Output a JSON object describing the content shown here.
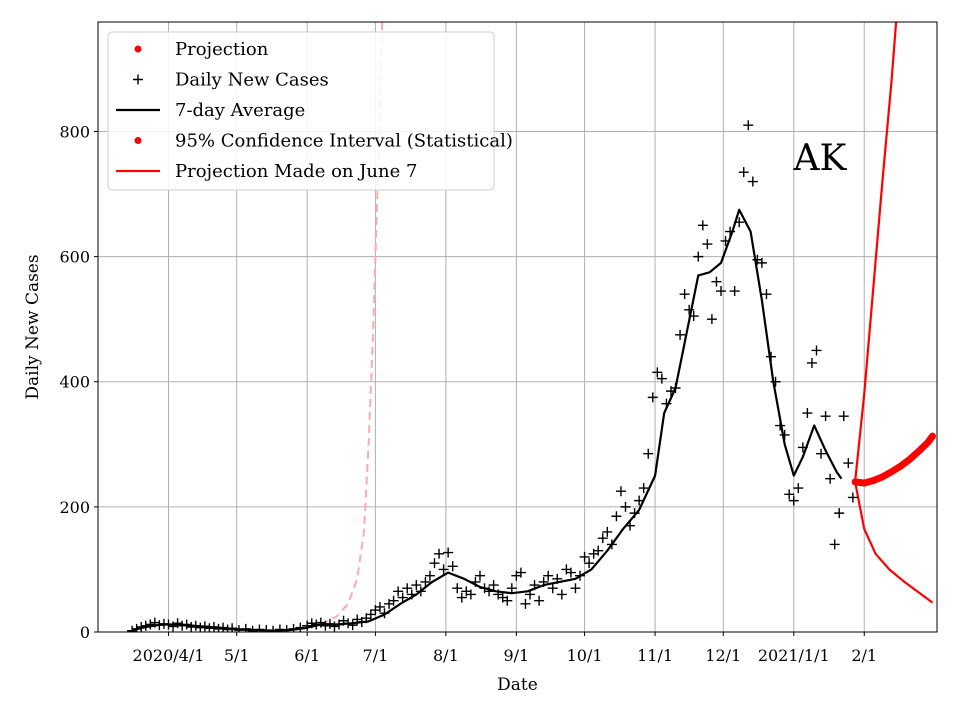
{
  "chart_data": {
    "type": "line",
    "annotation": "AK",
    "xlabel": "Date",
    "ylabel": "Daily New Cases",
    "x_tick_labels": [
      "2020/4/1",
      "5/1",
      "6/1",
      "7/1",
      "8/1",
      "9/1",
      "10/1",
      "11/1",
      "12/1",
      "2021/1/1",
      "2/1"
    ],
    "x_tick_dates": [
      "2020-04-01",
      "2020-05-01",
      "2020-06-01",
      "2020-07-01",
      "2020-08-01",
      "2020-09-01",
      "2020-10-01",
      "2020-11-01",
      "2020-12-01",
      "2021-01-01",
      "2021-02-01"
    ],
    "x_range": [
      "2020-03-01",
      "2021-03-05"
    ],
    "y_ticks": [
      0,
      200,
      400,
      600,
      800
    ],
    "ylim": [
      0,
      975
    ],
    "grid": true,
    "legend_position": "top-left",
    "legend": [
      {
        "label": "Projection",
        "marker": "dot",
        "color": "#ff0000"
      },
      {
        "label": "Daily New Cases",
        "marker": "plus",
        "color": "#000000"
      },
      {
        "label": "7-day Average",
        "marker": "line",
        "color": "#000000"
      },
      {
        "label": "95% Confidence Interval (Statistical)",
        "marker": "dot",
        "color": "#ff0000"
      },
      {
        "label": "Projection Made on June 7",
        "marker": "line",
        "color": "#ff0000"
      }
    ],
    "series": [
      {
        "name": "7-day Average",
        "color": "#000000",
        "style": "line",
        "points": [
          [
            "2020-03-16",
            3
          ],
          [
            "2020-03-22",
            8
          ],
          [
            "2020-03-29",
            12
          ],
          [
            "2020-04-05",
            12
          ],
          [
            "2020-04-12",
            10
          ],
          [
            "2020-04-19",
            8
          ],
          [
            "2020-04-26",
            6
          ],
          [
            "2020-05-03",
            4
          ],
          [
            "2020-05-10",
            3
          ],
          [
            "2020-05-17",
            2
          ],
          [
            "2020-05-24",
            3
          ],
          [
            "2020-05-31",
            6
          ],
          [
            "2020-06-07",
            12
          ],
          [
            "2020-06-14",
            12
          ],
          [
            "2020-06-21",
            14
          ],
          [
            "2020-06-28",
            17
          ],
          [
            "2020-07-05",
            28
          ],
          [
            "2020-07-12",
            45
          ],
          [
            "2020-07-19",
            60
          ],
          [
            "2020-07-26",
            80
          ],
          [
            "2020-08-02",
            95
          ],
          [
            "2020-08-09",
            85
          ],
          [
            "2020-08-16",
            72
          ],
          [
            "2020-08-23",
            65
          ],
          [
            "2020-08-30",
            62
          ],
          [
            "2020-09-06",
            65
          ],
          [
            "2020-09-13",
            75
          ],
          [
            "2020-09-20",
            80
          ],
          [
            "2020-09-27",
            85
          ],
          [
            "2020-10-04",
            100
          ],
          [
            "2020-10-11",
            130
          ],
          [
            "2020-10-18",
            165
          ],
          [
            "2020-10-25",
            195
          ],
          [
            "2020-11-01",
            250
          ],
          [
            "2020-11-05",
            350
          ],
          [
            "2020-11-10",
            390
          ],
          [
            "2020-11-15",
            480
          ],
          [
            "2020-11-20",
            570
          ],
          [
            "2020-11-25",
            575
          ],
          [
            "2020-11-30",
            590
          ],
          [
            "2020-12-05",
            640
          ],
          [
            "2020-12-08",
            675
          ],
          [
            "2020-12-13",
            640
          ],
          [
            "2020-12-18",
            530
          ],
          [
            "2020-12-23",
            400
          ],
          [
            "2020-12-28",
            300
          ],
          [
            "2021-01-01",
            250
          ],
          [
            "2021-01-05",
            280
          ],
          [
            "2021-01-10",
            330
          ],
          [
            "2021-01-15",
            290
          ],
          [
            "2021-01-20",
            255
          ],
          [
            "2021-01-22",
            245
          ]
        ]
      },
      {
        "name": "Daily New Cases",
        "color": "#000000",
        "style": "plus",
        "points": [
          [
            "2020-03-16",
            2
          ],
          [
            "2020-03-18",
            5
          ],
          [
            "2020-03-20",
            8
          ],
          [
            "2020-03-22",
            10
          ],
          [
            "2020-03-24",
            12
          ],
          [
            "2020-03-26",
            15
          ],
          [
            "2020-03-28",
            11
          ],
          [
            "2020-03-30",
            13
          ],
          [
            "2020-04-01",
            12
          ],
          [
            "2020-04-03",
            9
          ],
          [
            "2020-04-05",
            14
          ],
          [
            "2020-04-07",
            10
          ],
          [
            "2020-04-09",
            12
          ],
          [
            "2020-04-11",
            8
          ],
          [
            "2020-04-13",
            10
          ],
          [
            "2020-04-15",
            7
          ],
          [
            "2020-04-17",
            9
          ],
          [
            "2020-04-19",
            6
          ],
          [
            "2020-04-21",
            8
          ],
          [
            "2020-04-23",
            5
          ],
          [
            "2020-04-25",
            7
          ],
          [
            "2020-04-27",
            4
          ],
          [
            "2020-04-29",
            6
          ],
          [
            "2020-05-02",
            3
          ],
          [
            "2020-05-05",
            5
          ],
          [
            "2020-05-08",
            2
          ],
          [
            "2020-05-11",
            4
          ],
          [
            "2020-05-14",
            3
          ],
          [
            "2020-05-17",
            2
          ],
          [
            "2020-05-20",
            4
          ],
          [
            "2020-05-23",
            3
          ],
          [
            "2020-05-26",
            5
          ],
          [
            "2020-05-29",
            7
          ],
          [
            "2020-06-01",
            10
          ],
          [
            "2020-06-03",
            14
          ],
          [
            "2020-06-05",
            12
          ],
          [
            "2020-06-07",
            15
          ],
          [
            "2020-06-09",
            10
          ],
          [
            "2020-06-11",
            13
          ],
          [
            "2020-06-13",
            9
          ],
          [
            "2020-06-15",
            12
          ],
          [
            "2020-06-17",
            18
          ],
          [
            "2020-06-19",
            14
          ],
          [
            "2020-06-21",
            11
          ],
          [
            "2020-06-23",
            20
          ],
          [
            "2020-06-25",
            16
          ],
          [
            "2020-06-27",
            22
          ],
          [
            "2020-06-29",
            28
          ],
          [
            "2020-07-01",
            35
          ],
          [
            "2020-07-03",
            40
          ],
          [
            "2020-07-05",
            30
          ],
          [
            "2020-07-07",
            45
          ],
          [
            "2020-07-09",
            50
          ],
          [
            "2020-07-11",
            65
          ],
          [
            "2020-07-13",
            55
          ],
          [
            "2020-07-15",
            70
          ],
          [
            "2020-07-17",
            60
          ],
          [
            "2020-07-19",
            75
          ],
          [
            "2020-07-21",
            65
          ],
          [
            "2020-07-23",
            80
          ],
          [
            "2020-07-25",
            90
          ],
          [
            "2020-07-27",
            110
          ],
          [
            "2020-07-29",
            125
          ],
          [
            "2020-07-31",
            100
          ],
          [
            "2020-08-02",
            127
          ],
          [
            "2020-08-04",
            105
          ],
          [
            "2020-08-06",
            70
          ],
          [
            "2020-08-08",
            55
          ],
          [
            "2020-08-10",
            65
          ],
          [
            "2020-08-12",
            60
          ],
          [
            "2020-08-14",
            80
          ],
          [
            "2020-08-16",
            90
          ],
          [
            "2020-08-18",
            70
          ],
          [
            "2020-08-20",
            65
          ],
          [
            "2020-08-22",
            75
          ],
          [
            "2020-08-24",
            60
          ],
          [
            "2020-08-26",
            55
          ],
          [
            "2020-08-28",
            50
          ],
          [
            "2020-08-30",
            70
          ],
          [
            "2020-09-01",
            90
          ],
          [
            "2020-09-03",
            95
          ],
          [
            "2020-09-05",
            45
          ],
          [
            "2020-09-07",
            60
          ],
          [
            "2020-09-09",
            75
          ],
          [
            "2020-09-11",
            50
          ],
          [
            "2020-09-13",
            80
          ],
          [
            "2020-09-15",
            90
          ],
          [
            "2020-09-17",
            70
          ],
          [
            "2020-09-19",
            85
          ],
          [
            "2020-09-21",
            60
          ],
          [
            "2020-09-23",
            100
          ],
          [
            "2020-09-25",
            95
          ],
          [
            "2020-09-27",
            70
          ],
          [
            "2020-09-29",
            90
          ],
          [
            "2020-10-01",
            120
          ],
          [
            "2020-10-03",
            110
          ],
          [
            "2020-10-05",
            125
          ],
          [
            "2020-10-07",
            130
          ],
          [
            "2020-10-09",
            150
          ],
          [
            "2020-10-11",
            160
          ],
          [
            "2020-10-13",
            140
          ],
          [
            "2020-10-15",
            185
          ],
          [
            "2020-10-17",
            225
          ],
          [
            "2020-10-19",
            200
          ],
          [
            "2020-10-21",
            170
          ],
          [
            "2020-10-23",
            190
          ],
          [
            "2020-10-25",
            210
          ],
          [
            "2020-10-27",
            230
          ],
          [
            "2020-10-29",
            285
          ],
          [
            "2020-10-31",
            375
          ],
          [
            "2020-11-02",
            415
          ],
          [
            "2020-11-04",
            405
          ],
          [
            "2020-11-06",
            365
          ],
          [
            "2020-11-08",
            385
          ],
          [
            "2020-11-10",
            390
          ],
          [
            "2020-11-12",
            475
          ],
          [
            "2020-11-14",
            540
          ],
          [
            "2020-11-16",
            515
          ],
          [
            "2020-11-18",
            505
          ],
          [
            "2020-11-20",
            600
          ],
          [
            "2020-11-22",
            650
          ],
          [
            "2020-11-24",
            620
          ],
          [
            "2020-11-26",
            500
          ],
          [
            "2020-11-28",
            560
          ],
          [
            "2020-11-30",
            545
          ],
          [
            "2020-12-02",
            625
          ],
          [
            "2020-12-04",
            640
          ],
          [
            "2020-12-06",
            545
          ],
          [
            "2020-12-08",
            655
          ],
          [
            "2020-12-10",
            735
          ],
          [
            "2020-12-12",
            810
          ],
          [
            "2020-12-14",
            720
          ],
          [
            "2020-12-16",
            595
          ],
          [
            "2020-12-18",
            590
          ],
          [
            "2020-12-20",
            540
          ],
          [
            "2020-12-22",
            440
          ],
          [
            "2020-12-24",
            400
          ],
          [
            "2020-12-26",
            330
          ],
          [
            "2020-12-28",
            315
          ],
          [
            "2020-12-30",
            220
          ],
          [
            "2021-01-01",
            210
          ],
          [
            "2021-01-03",
            230
          ],
          [
            "2021-01-05",
            295
          ],
          [
            "2021-01-07",
            350
          ],
          [
            "2021-01-09",
            430
          ],
          [
            "2021-01-11",
            450
          ],
          [
            "2021-01-13",
            285
          ],
          [
            "2021-01-15",
            345
          ],
          [
            "2021-01-17",
            245
          ],
          [
            "2021-01-19",
            140
          ],
          [
            "2021-01-21",
            190
          ],
          [
            "2021-01-23",
            345
          ],
          [
            "2021-01-25",
            270
          ],
          [
            "2021-01-27",
            215
          ]
        ]
      },
      {
        "name": "Projection",
        "color": "#ff0000",
        "style": "dots",
        "points": [
          [
            "2021-01-28",
            240
          ],
          [
            "2021-02-01",
            238
          ],
          [
            "2021-02-05",
            242
          ],
          [
            "2021-02-09",
            248
          ],
          [
            "2021-02-13",
            256
          ],
          [
            "2021-02-17",
            265
          ],
          [
            "2021-02-21",
            276
          ],
          [
            "2021-02-25",
            289
          ],
          [
            "2021-03-01",
            303
          ],
          [
            "2021-03-03",
            313
          ]
        ]
      },
      {
        "name": "95% Confidence Interval (Statistical)",
        "color": "#ff0000",
        "style": "line",
        "points": [
          [
            "2021-01-28",
            240
          ],
          [
            "2021-02-01",
            380
          ],
          [
            "2021-02-05",
            550
          ],
          [
            "2021-02-09",
            720
          ],
          [
            "2021-02-13",
            880
          ],
          [
            "2021-02-15",
            975
          ]
        ]
      },
      {
        "name": "95% Confidence Interval (Statistical)",
        "color": "#ff0000",
        "style": "line",
        "points": [
          [
            "2021-01-28",
            240
          ],
          [
            "2021-02-01",
            165
          ],
          [
            "2021-02-06",
            125
          ],
          [
            "2021-02-12",
            100
          ],
          [
            "2021-02-18",
            82
          ],
          [
            "2021-02-24",
            66
          ],
          [
            "2021-03-03",
            47
          ]
        ]
      },
      {
        "name": "Projection Made on June 7",
        "color": "#ffaaaa",
        "style": "dashed",
        "points": [
          [
            "2020-06-07",
            12
          ],
          [
            "2020-06-14",
            25
          ],
          [
            "2020-06-19",
            45
          ],
          [
            "2020-06-23",
            85
          ],
          [
            "2020-06-26",
            160
          ],
          [
            "2020-06-28",
            300
          ],
          [
            "2020-06-30",
            480
          ],
          [
            "2020-07-02",
            720
          ],
          [
            "2020-07-04",
            975
          ]
        ]
      }
    ]
  }
}
